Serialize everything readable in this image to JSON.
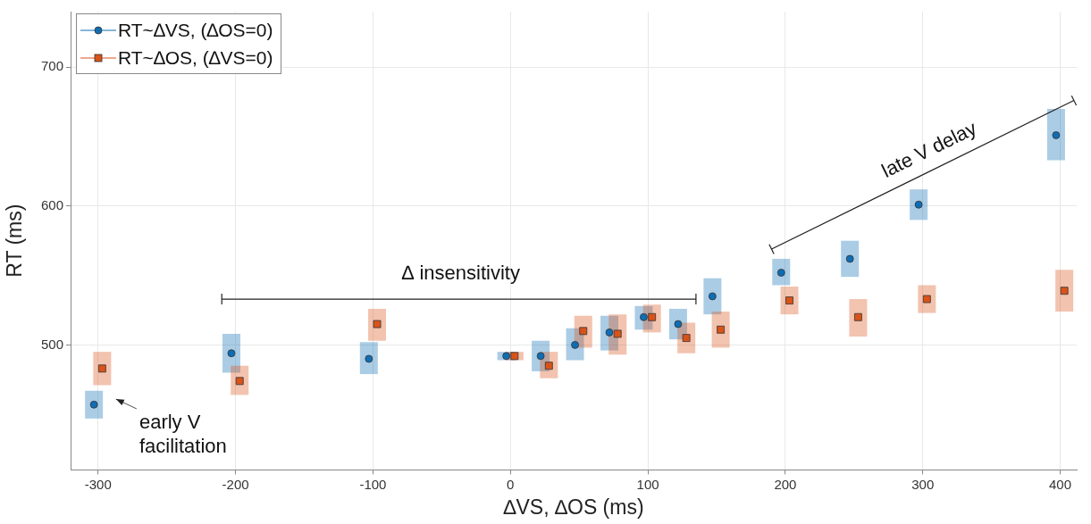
{
  "chart_data": {
    "type": "scatter",
    "xlabel": "∆VS, ∆OS (ms)",
    "ylabel": "RT (ms)",
    "xlim": [
      -320,
      412
    ],
    "xticks": [
      -300,
      -200,
      -100,
      0,
      100,
      200,
      300,
      400
    ],
    "ylim": [
      410,
      740
    ],
    "yticks": [
      500,
      600,
      700
    ],
    "grid": true,
    "legend": "top left",
    "series": [
      {
        "name": "RT~∆VS, (∆OS=0)",
        "color": "#0f6db4",
        "marker": "circle",
        "x": [
          -303,
          -203,
          -103,
          -3,
          22,
          47,
          72,
          97,
          122,
          147,
          197,
          247,
          297,
          397
        ],
        "values": [
          457,
          494,
          490,
          492,
          492,
          500,
          509,
          520,
          515,
          535,
          552,
          562,
          601,
          651
        ],
        "errors": [
          [
            447,
            467
          ],
          [
            480,
            508
          ],
          [
            479,
            502
          ],
          [
            489,
            495
          ],
          [
            481,
            503
          ],
          [
            489,
            512
          ],
          [
            496,
            521
          ],
          [
            511,
            528
          ],
          [
            504,
            526
          ],
          [
            522,
            548
          ],
          [
            543,
            562
          ],
          [
            549,
            575
          ],
          [
            590,
            612
          ],
          [
            633,
            670
          ]
        ]
      },
      {
        "name": "RT~∆OS, (∆VS=0)",
        "color": "#d95319",
        "marker": "square",
        "x": [
          -297,
          -197,
          -97,
          3,
          28,
          53,
          78,
          103,
          128,
          153,
          203,
          253,
          303,
          403
        ],
        "values": [
          483,
          474,
          515,
          492,
          485,
          510,
          508,
          520,
          505,
          511,
          532,
          520,
          533,
          539
        ],
        "errors": [
          [
            471,
            495
          ],
          [
            464,
            485
          ],
          [
            503,
            526
          ],
          [
            489,
            495
          ],
          [
            476,
            495
          ],
          [
            498,
            521
          ],
          [
            493,
            522
          ],
          [
            509,
            529
          ],
          [
            494,
            516
          ],
          [
            498,
            524
          ],
          [
            522,
            542
          ],
          [
            506,
            533
          ],
          [
            523,
            543
          ],
          [
            524,
            554
          ]
        ]
      }
    ],
    "annotations": [
      "∆ insensitivity",
      "late V delay",
      "early V facilitation"
    ]
  }
}
